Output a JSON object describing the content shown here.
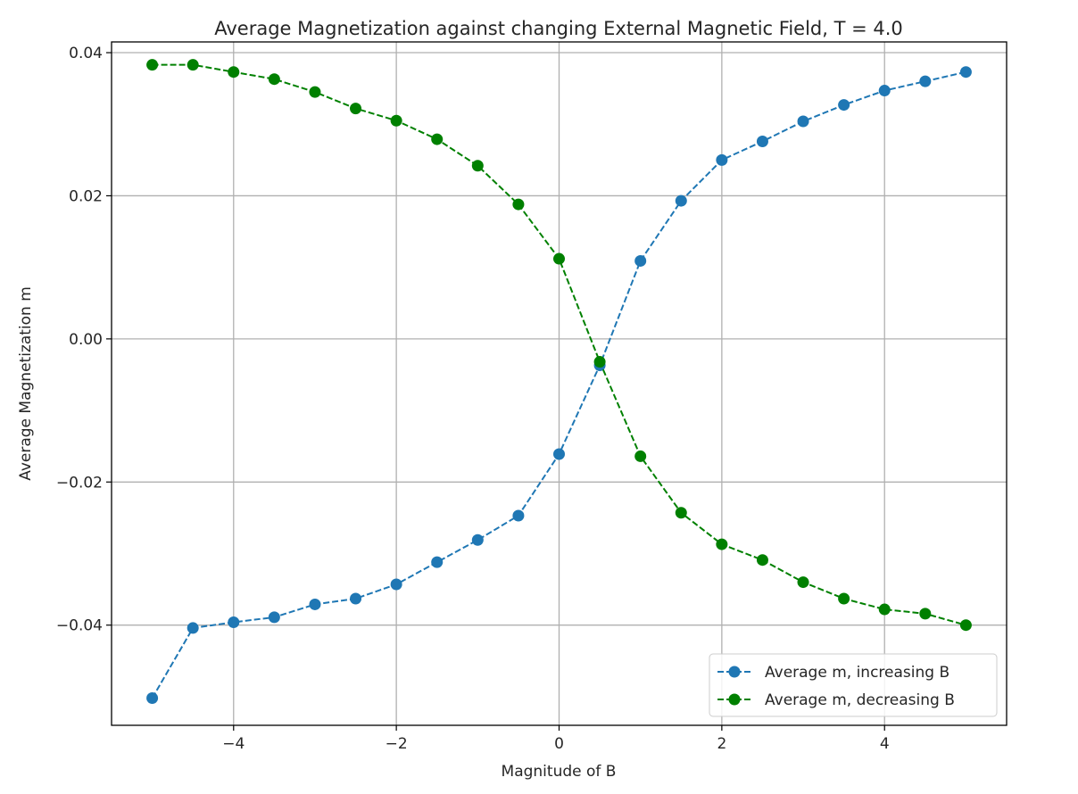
{
  "chart_data": {
    "type": "line",
    "title": "Average Magnetization against changing External Magnetic Field, T = 4.0",
    "xlabel": "Magnitude of B",
    "ylabel": "Average Magnetization m",
    "xlim": [
      -5.5,
      5.5
    ],
    "ylim": [
      -0.054,
      0.0415
    ],
    "xticks": [
      -4,
      -2,
      0,
      2,
      4
    ],
    "xtick_labels": [
      "−4",
      "−2",
      "0",
      "2",
      "4"
    ],
    "yticks": [
      0.04,
      0.02,
      0.0,
      -0.02,
      -0.04
    ],
    "ytick_labels": [
      "0.04",
      "0.02",
      "0.00",
      "−0.02",
      "−0.04"
    ],
    "grid": true,
    "legend_position": "lower-right",
    "x": [
      -5.0,
      -4.5,
      -4.0,
      -3.5,
      -3.0,
      -2.5,
      -2.0,
      -1.5,
      -1.0,
      -0.5,
      0.0,
      0.5,
      1.0,
      1.5,
      2.0,
      2.5,
      3.0,
      3.5,
      4.0,
      4.5,
      5.0
    ],
    "series": [
      {
        "name": "Average m, increasing B",
        "color": "#1f77b4",
        "line_style": "dashed",
        "marker": "circle",
        "values": [
          -0.0502,
          -0.0404,
          -0.0396,
          -0.0389,
          -0.0371,
          -0.0363,
          -0.0343,
          -0.0312,
          -0.0281,
          -0.0247,
          -0.0161,
          -0.0037,
          0.0109,
          0.0193,
          0.025,
          0.0276,
          0.0304,
          0.0327,
          0.0347,
          0.036,
          0.0373
        ]
      },
      {
        "name": "Average m, decreasing B",
        "color": "#008000",
        "line_style": "dashed",
        "marker": "circle",
        "values": [
          0.0383,
          0.0383,
          0.0373,
          0.0363,
          0.0345,
          0.0322,
          0.0305,
          0.0279,
          0.0242,
          0.0188,
          0.0112,
          -0.0032,
          -0.0164,
          -0.0243,
          -0.0287,
          -0.0309,
          -0.034,
          -0.0363,
          -0.0378,
          -0.0384,
          -0.04
        ]
      }
    ]
  }
}
